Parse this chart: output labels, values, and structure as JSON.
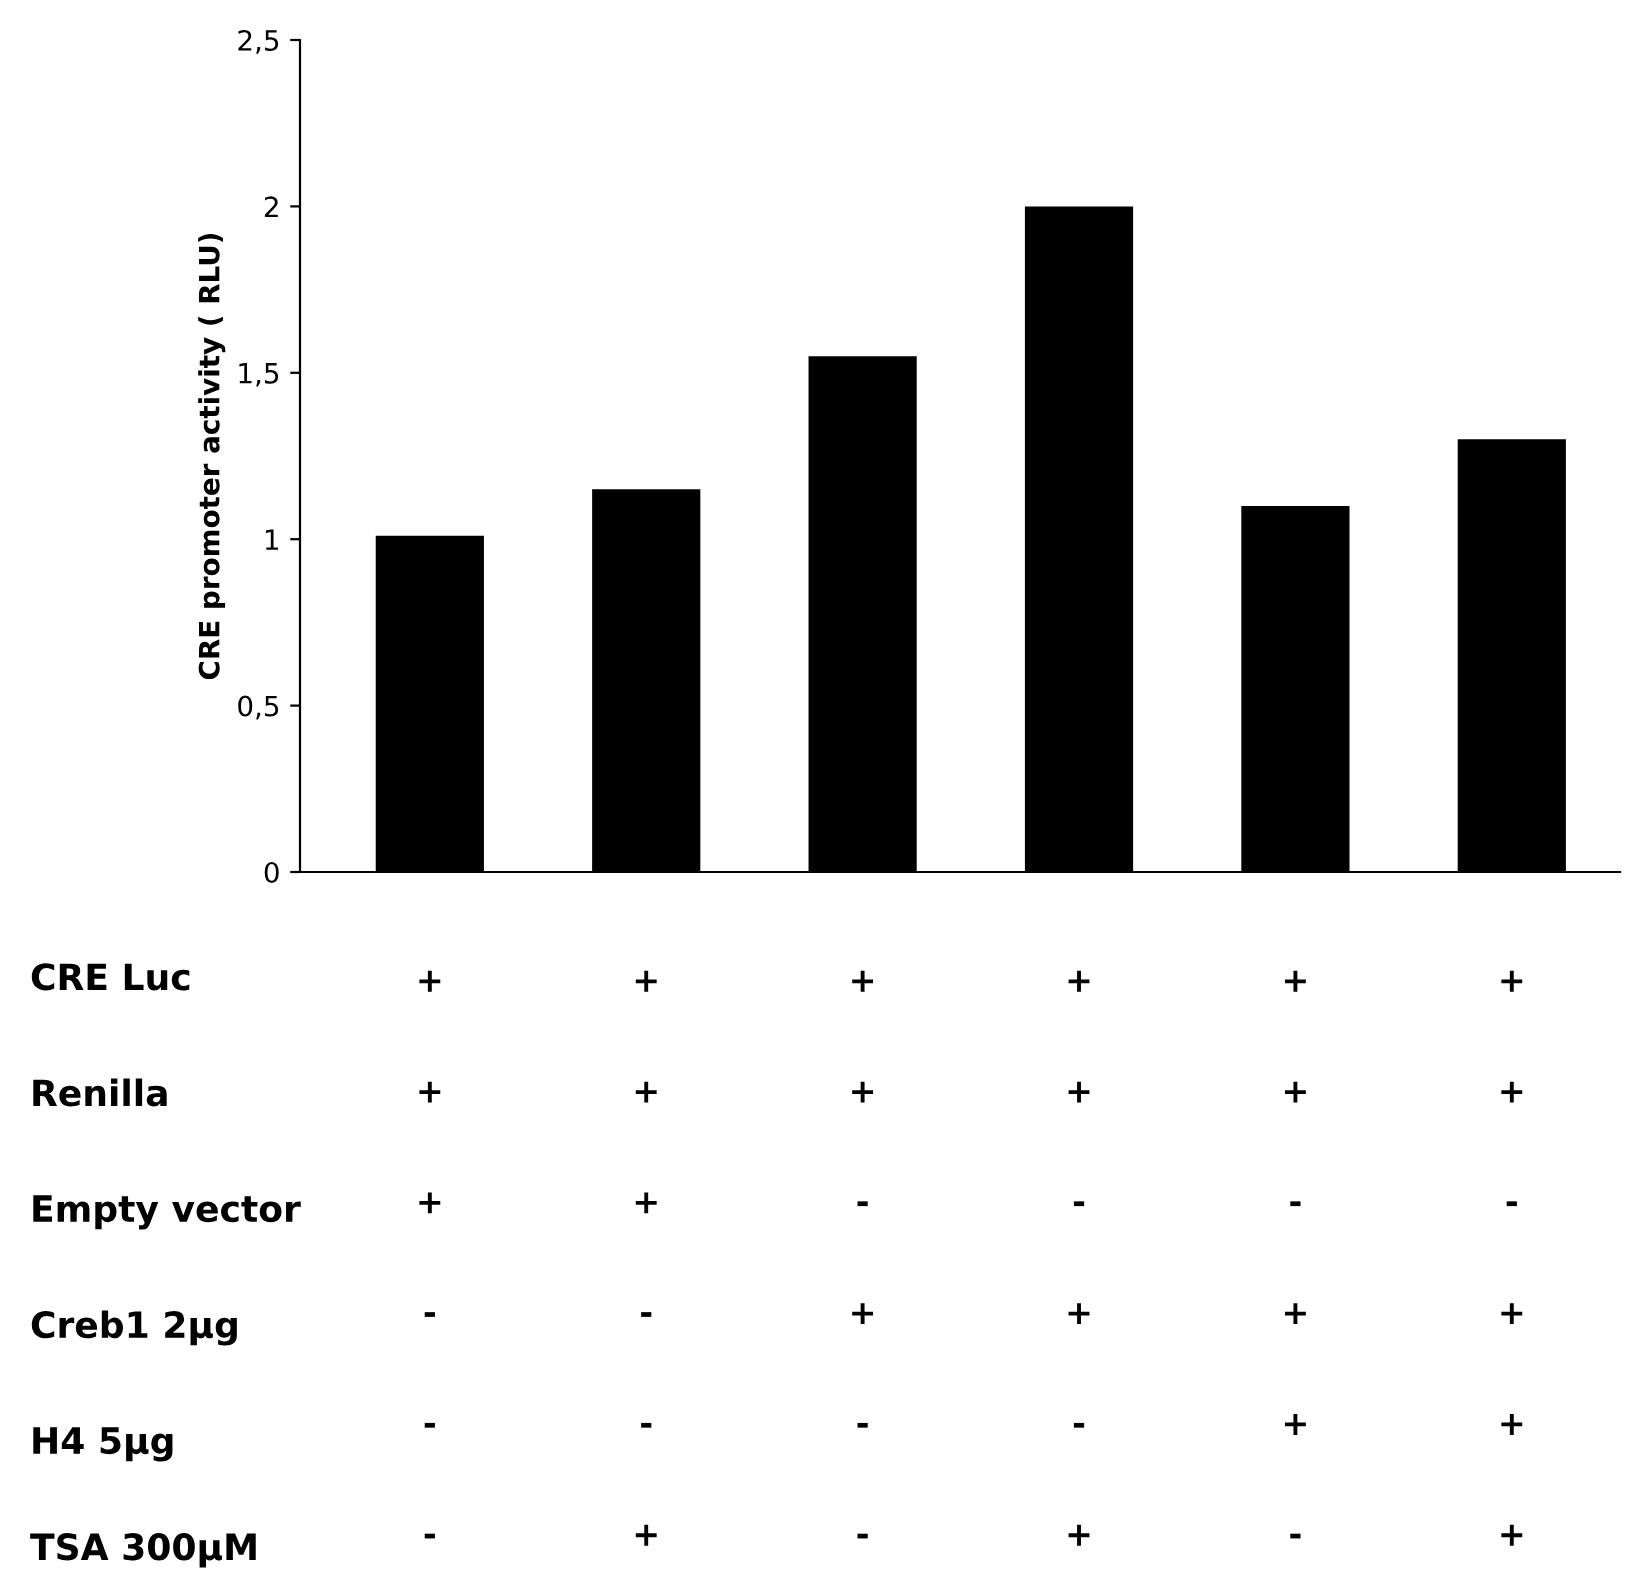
{
  "chart_data": {
    "type": "bar",
    "ylabel": "CRE promoter activity ( RLU)",
    "categories": [
      "+\n+\n+\n-\n-\n-",
      "+\n+\n+\n-\n-\n+",
      "+\n+\n-\n+\n-\n-",
      "+\n+\n-\n+\n-\n+",
      "+\n+\n-\n+\n+\n-",
      "+\n+\n-\n+\n+\n+"
    ],
    "values": [
      1.01,
      1.15,
      1.55,
      2.0,
      1.1,
      1.3
    ],
    "color": "#000000",
    "ylim": [
      0,
      2.5
    ],
    "yticks": [
      0,
      {
        "value": 0.5,
        "label": "0,5"
      },
      1,
      {
        "value": 1.5,
        "label": "1,5"
      },
      2,
      {
        "value": 2.5,
        "label": "2,5"
      }
    ],
    "annotations": [
      "CRE Luc",
      "Renilla",
      "Empty vector",
      "Creb1 2µg",
      "H4 5µg",
      "TSA 300µM"
    ],
    "grid": false,
    "legend": false
  }
}
